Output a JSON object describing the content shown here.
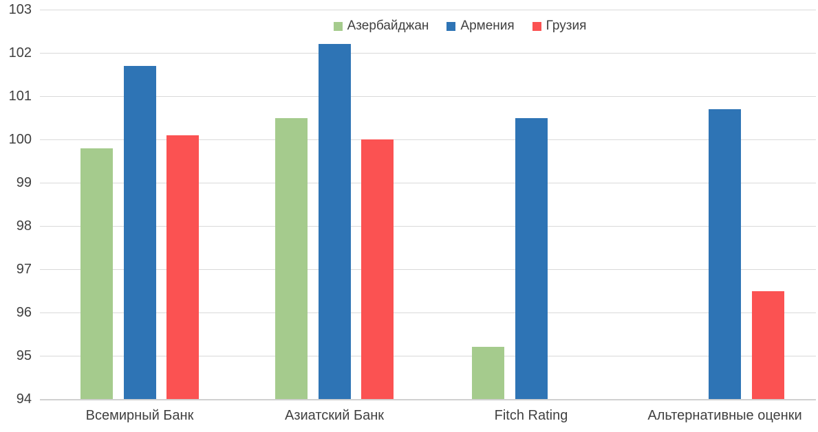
{
  "chart_data": {
    "type": "bar",
    "title": "",
    "xlabel": "",
    "ylabel": "",
    "categories": [
      "Всемирный Банк",
      "Азиатский Банк",
      "Fitch Rating",
      "Альтернативные оценки"
    ],
    "series": [
      {
        "name": "Азербайджан",
        "color": "#a5cb8d",
        "values": [
          99.8,
          100.5,
          95.2,
          null
        ]
      },
      {
        "name": "Армения",
        "color": "#2e74b5",
        "values": [
          101.7,
          102.2,
          100.5,
          100.7
        ]
      },
      {
        "name": "Грузия",
        "color": "#fb5252",
        "values": [
          100.1,
          100.0,
          null,
          96.5
        ]
      }
    ],
    "y_axis": {
      "min": 94,
      "max": 103,
      "step": 1,
      "ticks": [
        103,
        102,
        101,
        100,
        99,
        98,
        97,
        96,
        95,
        94
      ]
    },
    "grid": true,
    "legend_position": "top-center",
    "colors": {
      "gridline": "#d9d9d9",
      "axis_line": "#d0d0d0",
      "text": "#404040",
      "background": "#ffffff"
    }
  }
}
